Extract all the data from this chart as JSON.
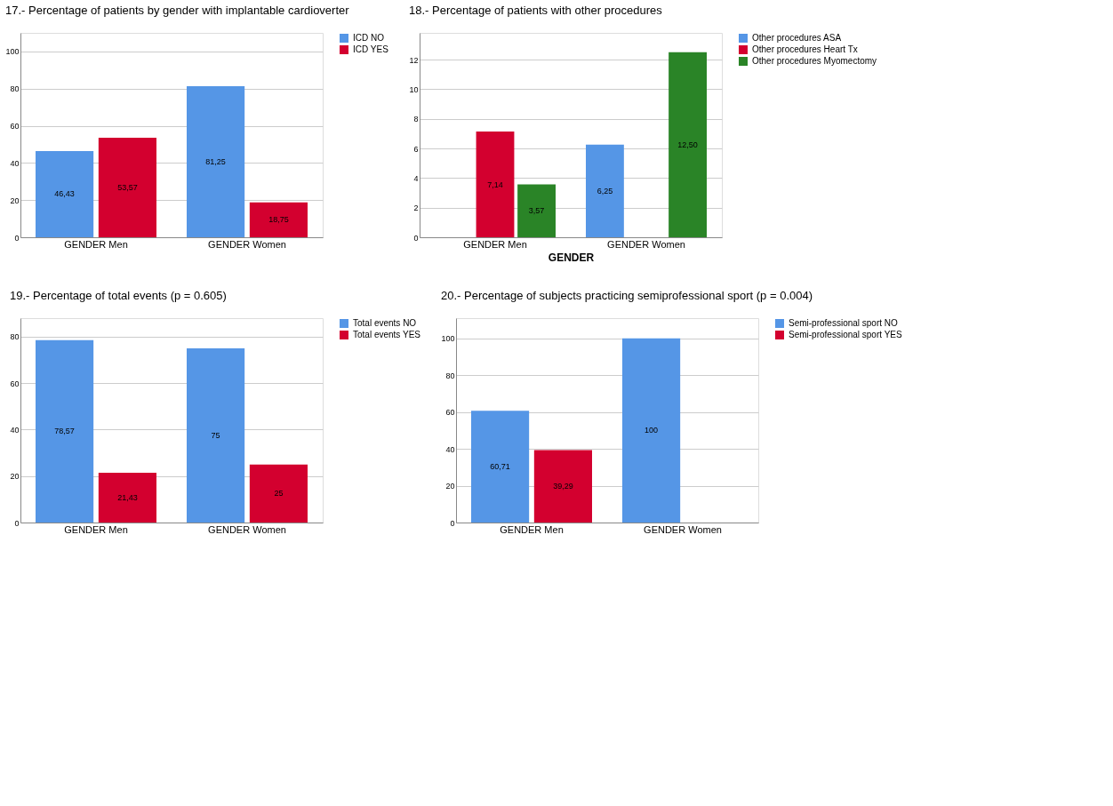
{
  "chart_data": [
    {
      "type": "bar",
      "title": "17.- Percentage of patients by gender with implantable cardioverter",
      "categories": [
        "GENDER Men",
        "GENDER Women"
      ],
      "series": [
        {
          "name": "ICD NO",
          "color": "#5596e6",
          "values": [
            46.43,
            81.25
          ],
          "value_labels": [
            "46,43",
            "81,25"
          ]
        },
        {
          "name": "ICD YES",
          "color": "#d3002f",
          "values": [
            53.57,
            18.75
          ],
          "value_labels": [
            "53,57",
            "18,75"
          ]
        }
      ],
      "ylim": [
        0,
        110
      ],
      "yticks": [
        0,
        20,
        40,
        60,
        80,
        100
      ],
      "grid": "y",
      "legend": "top right"
    },
    {
      "type": "bar",
      "title": "18.- Percentage of patients with other procedures",
      "xlabel": "GENDER",
      "categories": [
        "GENDER Men",
        "GENDER Women"
      ],
      "series": [
        {
          "name": "Other procedures ASA",
          "color": "#5596e6",
          "values": [
            null,
            6.25
          ],
          "value_labels": [
            null,
            "6,25"
          ]
        },
        {
          "name": "Other procedures Heart Tx",
          "color": "#d3002f",
          "values": [
            7.14,
            null
          ],
          "value_labels": [
            "7,14",
            null
          ]
        },
        {
          "name": "Other procedures Myomectomy",
          "color": "#2a8427",
          "values": [
            3.57,
            12.5
          ],
          "value_labels": [
            "3,57",
            "12,50"
          ]
        }
      ],
      "ylim": [
        0,
        13.8
      ],
      "yticks": [
        0,
        2,
        4,
        6,
        8,
        10,
        12
      ],
      "grid": "y",
      "legend": "top right"
    },
    {
      "type": "bar",
      "title": "19.- Percentage of total events (p = 0.605)",
      "categories": [
        "GENDER Men",
        "GENDER Women"
      ],
      "series": [
        {
          "name": "Total events NO",
          "color": "#5596e6",
          "values": [
            78.57,
            75
          ],
          "value_labels": [
            "78,57",
            "75"
          ]
        },
        {
          "name": "Total events YES",
          "color": "#d3002f",
          "values": [
            21.43,
            25
          ],
          "value_labels": [
            "21,43",
            "25"
          ]
        }
      ],
      "ylim": [
        0,
        88
      ],
      "yticks": [
        0,
        20,
        40,
        60,
        80
      ],
      "grid": "y",
      "legend": "top right"
    },
    {
      "type": "bar",
      "title": "20.- Percentage of subjects practicing semiprofessional sport (p = 0.004)",
      "categories": [
        "GENDER Men",
        "GENDER Women"
      ],
      "series": [
        {
          "name": "Semi-professional sport NO",
          "color": "#5596e6",
          "values": [
            60.71,
            100
          ],
          "value_labels": [
            "60,71",
            "100"
          ]
        },
        {
          "name": "Semi-professional sport YES",
          "color": "#d3002f",
          "values": [
            39.29,
            null
          ],
          "value_labels": [
            "39,29",
            null
          ]
        }
      ],
      "ylim": [
        0,
        111
      ],
      "yticks": [
        0,
        20,
        40,
        60,
        80,
        100
      ],
      "grid": "y",
      "legend": "top right"
    }
  ]
}
